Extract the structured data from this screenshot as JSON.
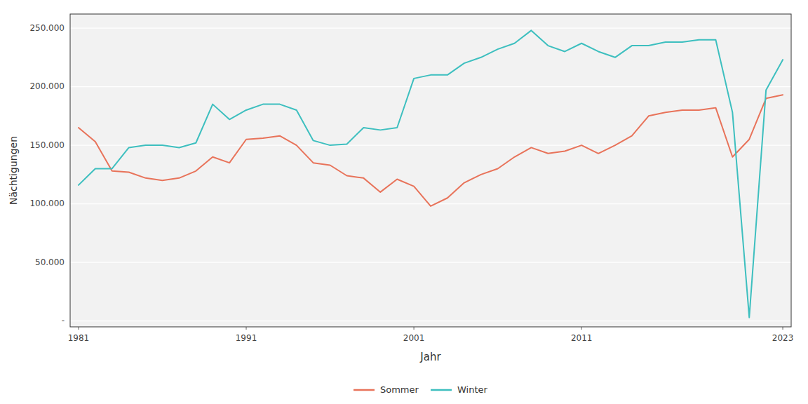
{
  "chart_data": {
    "type": "line",
    "xlabel": "Jahr",
    "ylabel": "Nächtigungen",
    "x": [
      1981,
      1982,
      1983,
      1984,
      1985,
      1986,
      1987,
      1988,
      1989,
      1990,
      1991,
      1992,
      1993,
      1994,
      1995,
      1996,
      1997,
      1998,
      1999,
      2000,
      2001,
      2002,
      2003,
      2004,
      2005,
      2006,
      2007,
      2008,
      2009,
      2010,
      2011,
      2012,
      2013,
      2014,
      2015,
      2016,
      2017,
      2018,
      2019,
      2020,
      2021,
      2022,
      2023
    ],
    "series": [
      {
        "name": "Sommer",
        "color": "#E8735A",
        "values": [
          165000,
          153000,
          128000,
          127000,
          122000,
          120000,
          122000,
          128000,
          140000,
          135000,
          155000,
          156000,
          158000,
          150000,
          135000,
          133000,
          124000,
          122000,
          110000,
          121000,
          115000,
          98000,
          105000,
          118000,
          125000,
          130000,
          140000,
          148000,
          143000,
          145000,
          150000,
          143000,
          150000,
          158000,
          175000,
          178000,
          180000,
          180000,
          182000,
          140000,
          155000,
          190000,
          193000
        ]
      },
      {
        "name": "Winter",
        "color": "#3DBFBF",
        "values": [
          116000,
          130000,
          130000,
          148000,
          150000,
          150000,
          148000,
          152000,
          185000,
          172000,
          180000,
          185000,
          185000,
          180000,
          154000,
          150000,
          151000,
          165000,
          163000,
          165000,
          207000,
          210000,
          210000,
          220000,
          225000,
          232000,
          237000,
          248000,
          235000,
          230000,
          237000,
          230000,
          225000,
          235000,
          235000,
          238000,
          238000,
          240000,
          240000,
          178000,
          3000,
          197000,
          223000
        ]
      }
    ],
    "xlim": [
      1980.5,
      2023.5
    ],
    "ylim": [
      -5000,
      262000
    ],
    "xticks": [
      1981,
      1991,
      2001,
      2011,
      2023
    ],
    "yticks": [
      {
        "value": 0,
        "label": "-"
      },
      {
        "value": 50000,
        "label": "50.000"
      },
      {
        "value": 100000,
        "label": "100.000"
      },
      {
        "value": 150000,
        "label": "150.000"
      },
      {
        "value": 200000,
        "label": "200.000"
      },
      {
        "value": 250000,
        "label": "250.000"
      }
    ],
    "grid": true,
    "legend": "bottom"
  }
}
